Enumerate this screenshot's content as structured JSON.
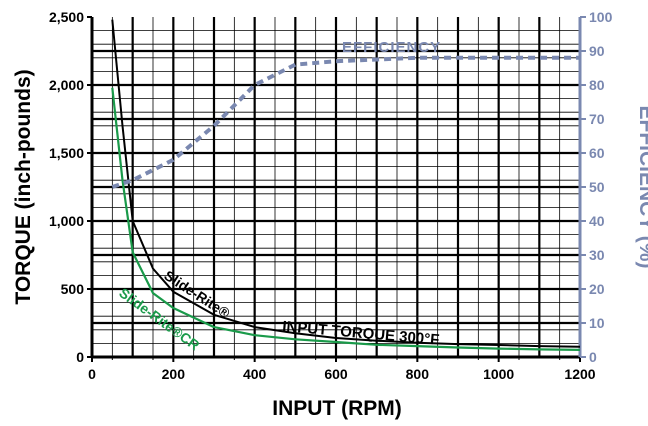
{
  "chart_data": {
    "type": "line",
    "xlabel": "INPUT (RPM)",
    "ylabel": "TORQUE (inch-pounds)",
    "y2label": "EFFICIENCY (%)",
    "xlim": [
      0,
      1200
    ],
    "ylim": [
      0,
      2500
    ],
    "y2lim": [
      0,
      100
    ],
    "x_ticks": [
      0,
      200,
      400,
      600,
      800,
      1000,
      1200
    ],
    "x_tick_labels": [
      "0",
      "200",
      "400",
      "600",
      "800",
      "1000",
      "1200"
    ],
    "y_ticks": [
      0,
      500,
      1000,
      1500,
      2000,
      2500
    ],
    "y_tick_labels": [
      "0",
      "500",
      "1,000",
      "1,500",
      "2,000",
      "2,500"
    ],
    "y2_ticks": [
      0,
      10,
      20,
      30,
      40,
      50,
      60,
      70,
      80,
      90,
      100
    ],
    "y2_tick_labels": [
      "0",
      "10",
      "20",
      "30",
      "40",
      "50",
      "60",
      "70",
      "80",
      "90",
      "100"
    ],
    "grid": true,
    "colors": {
      "slide_rite": "#000000",
      "slide_rite_cr": "#1a9a4a",
      "efficiency": "#7a88b0",
      "right_axis": "#7a88b0",
      "grid": "#000000"
    },
    "series": [
      {
        "name": "Slide-Rite®",
        "axis": "left",
        "style": "solid",
        "x": [
          50,
          75,
          100,
          150,
          200,
          300,
          400,
          500,
          600,
          700,
          800,
          900,
          1000,
          1100,
          1200
        ],
        "values": [
          2480,
          1700,
          1000,
          650,
          480,
          310,
          220,
          175,
          140,
          120,
          105,
          95,
          88,
          80,
          75
        ]
      },
      {
        "name": "Slide-Rite®CR",
        "axis": "left",
        "style": "solid",
        "x": [
          50,
          75,
          100,
          150,
          200,
          300,
          400,
          500,
          600,
          700,
          800,
          900,
          1000,
          1100,
          1200
        ],
        "values": [
          1980,
          1300,
          770,
          470,
          360,
          220,
          160,
          130,
          110,
          90,
          80,
          70,
          62,
          56,
          52
        ]
      },
      {
        "name": "EFFICIENCY",
        "axis": "right",
        "style": "dashed",
        "x": [
          50,
          100,
          200,
          300,
          400,
          500,
          600,
          800,
          1000,
          1200
        ],
        "values": [
          50,
          52,
          58,
          68,
          80,
          86,
          87,
          88,
          88,
          88
        ]
      }
    ],
    "annotations": {
      "slide_rite": "Slide-Rite®",
      "slide_rite_cr": "Slide-Rite®CR",
      "input_torque": "INPUT TORQUE 300°F",
      "efficiency": "EFFICIENCY"
    }
  }
}
